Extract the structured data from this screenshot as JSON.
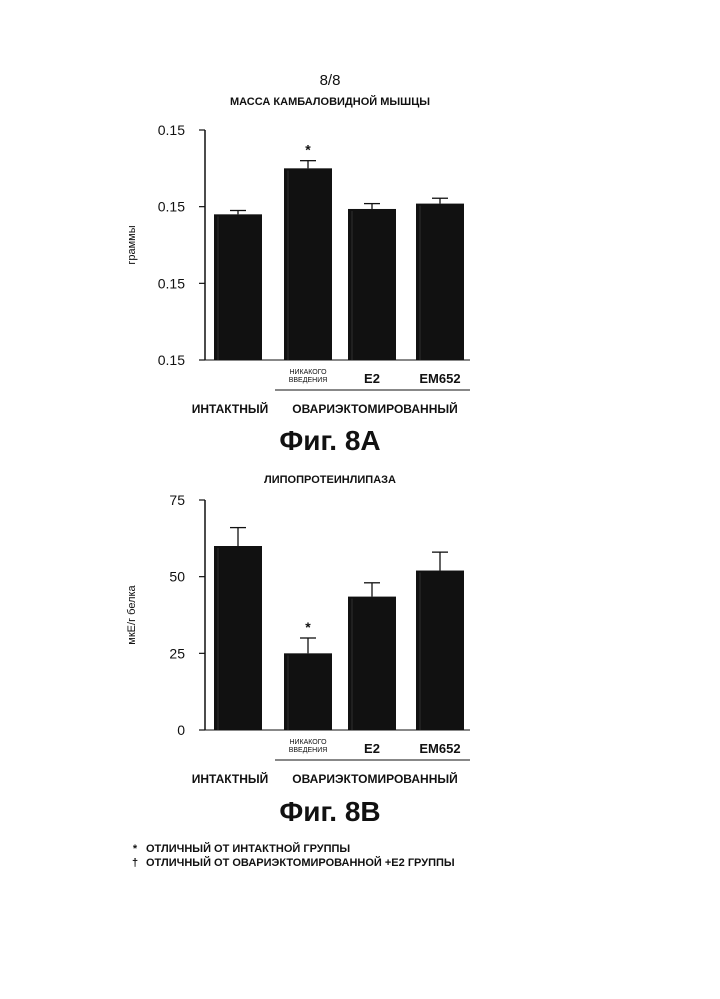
{
  "page_number": "8/8",
  "legend_notes": [
    {
      "symbol": "*",
      "text": "ОТЛИЧНЫЙ ОТ ИНТАКТНОЙ ГРУППЫ"
    },
    {
      "symbol": "†",
      "text": "ОТЛИЧНЫЙ ОТ ОВАРИЭКТОМИРОВАННОЙ +E2 ГРУППЫ"
    }
  ],
  "chart_data": [
    {
      "type": "bar",
      "title": "МАССА КАМБАЛОВИДНОЙ МЫШЦЫ",
      "figure_label": "Фиг. 8A",
      "ylabel": "граммы",
      "ylim": [
        0,
        0.3
      ],
      "y_tick_values": [
        0,
        0.1,
        0.2,
        0.3
      ],
      "y_tick_labels": [
        "0.15",
        "0.15",
        "0.15",
        "0.15"
      ],
      "categories": [
        "",
        "НИКАКОГО ВВЕДЕНИЯ",
        "E2",
        "EM652"
      ],
      "values": [
        0.19,
        0.25,
        0.197,
        0.204
      ],
      "errors": [
        0.005,
        0.01,
        0.007,
        0.007
      ],
      "significance": [
        "",
        "*",
        "",
        ""
      ],
      "group_labels": [
        "ИНТАКТНЫЙ",
        "ОВАРИЭКТОМИРОВАННЫЙ"
      ],
      "bar_color": "#111111"
    },
    {
      "type": "bar",
      "title": "ЛИПОПРОТЕИНЛИПАЗА",
      "figure_label": "Фиг. 8B",
      "ylabel": "мкЕ/г белка",
      "ylim": [
        0,
        75
      ],
      "y_tick_values": [
        0,
        25,
        50,
        75
      ],
      "y_tick_labels": [
        "0",
        "25",
        "50",
        "75"
      ],
      "categories": [
        "",
        "НИКАКОГО ВВЕДЕНИЯ",
        "E2",
        "EM652"
      ],
      "values": [
        60,
        25,
        43.5,
        52
      ],
      "errors": [
        6,
        5,
        4.5,
        6
      ],
      "significance": [
        "",
        "*",
        "",
        ""
      ],
      "group_labels": [
        "ИНТАКТНЫЙ",
        "ОВАРИЭКТОМИРОВАННЫЙ"
      ],
      "bar_color": "#111111"
    }
  ]
}
